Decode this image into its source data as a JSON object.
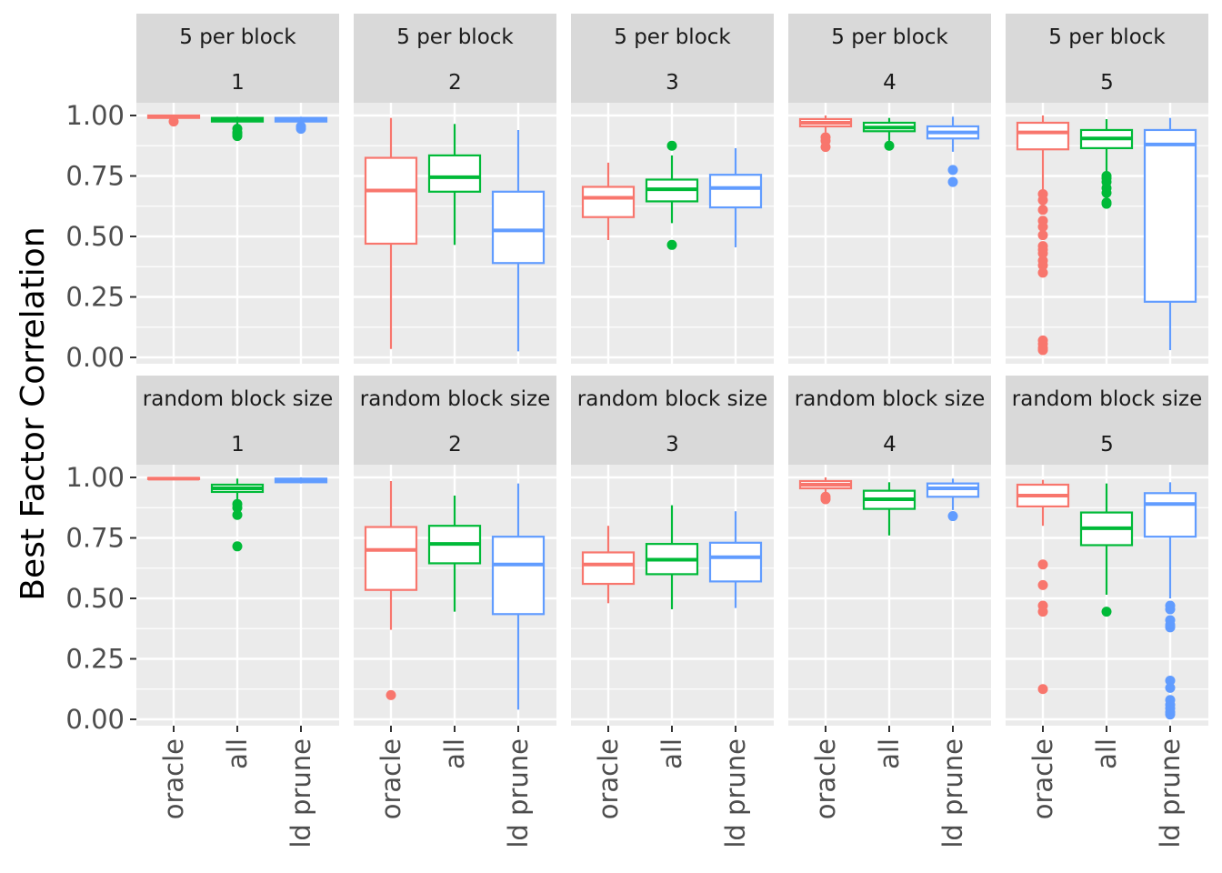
{
  "chart_data": {
    "type": "boxplot",
    "ylabel": "Best Factor Correlation",
    "xlabel": "",
    "ylim": [
      0,
      1
    ],
    "y_ticks": [
      "0.00",
      "0.25",
      "0.50",
      "0.75",
      "1.00"
    ],
    "y_tick_values": [
      0,
      0.25,
      0.5,
      0.75,
      1.0
    ],
    "categories": [
      "oracle",
      "all",
      "ld prune"
    ],
    "colors": {
      "oracle": "#F8766D",
      "all": "#00BA38",
      "ld prune": "#619CFF"
    },
    "grid": true,
    "legend": "none",
    "row_labels": [
      "5 per block",
      "random block size"
    ],
    "col_labels": [
      "1",
      "2",
      "3",
      "4",
      "5"
    ],
    "panels": [
      {
        "row": "5 per block",
        "col": "1",
        "boxes": [
          {
            "category": "oracle",
            "lower": 0.985,
            "q1": 0.99,
            "median": 0.995,
            "q3": 1.0,
            "upper": 1.0,
            "outliers": [
              0.975
            ]
          },
          {
            "category": "all",
            "lower": 0.955,
            "q1": 0.975,
            "median": 0.98,
            "q3": 0.99,
            "upper": 0.995,
            "outliers": [
              0.93,
              0.925,
              0.915,
              0.945
            ]
          },
          {
            "category": "ld prune",
            "lower": 0.965,
            "q1": 0.975,
            "median": 0.985,
            "q3": 0.99,
            "upper": 0.995,
            "outliers": [
              0.955,
              0.945
            ]
          }
        ]
      },
      {
        "row": "5 per block",
        "col": "2",
        "boxes": [
          {
            "category": "oracle",
            "lower": 0.035,
            "q1": 0.47,
            "median": 0.69,
            "q3": 0.825,
            "upper": 0.99,
            "outliers": []
          },
          {
            "category": "all",
            "lower": 0.465,
            "q1": 0.685,
            "median": 0.745,
            "q3": 0.835,
            "upper": 0.965,
            "outliers": []
          },
          {
            "category": "ld prune",
            "lower": 0.025,
            "q1": 0.39,
            "median": 0.525,
            "q3": 0.685,
            "upper": 0.94,
            "outliers": []
          }
        ]
      },
      {
        "row": "5 per block",
        "col": "3",
        "boxes": [
          {
            "category": "oracle",
            "lower": 0.485,
            "q1": 0.58,
            "median": 0.66,
            "q3": 0.705,
            "upper": 0.805,
            "outliers": []
          },
          {
            "category": "all",
            "lower": 0.555,
            "q1": 0.645,
            "median": 0.695,
            "q3": 0.735,
            "upper": 0.835,
            "outliers": [
              0.875,
              0.465
            ]
          },
          {
            "category": "ld prune",
            "lower": 0.455,
            "q1": 0.62,
            "median": 0.7,
            "q3": 0.755,
            "upper": 0.865,
            "outliers": []
          }
        ]
      },
      {
        "row": "5 per block",
        "col": "4",
        "boxes": [
          {
            "category": "oracle",
            "lower": 0.93,
            "q1": 0.955,
            "median": 0.97,
            "q3": 0.985,
            "upper": 1.0,
            "outliers": [
              0.91,
              0.895,
              0.87
            ]
          },
          {
            "category": "all",
            "lower": 0.895,
            "q1": 0.935,
            "median": 0.95,
            "q3": 0.97,
            "upper": 0.99,
            "outliers": [
              0.875
            ]
          },
          {
            "category": "ld prune",
            "lower": 0.85,
            "q1": 0.905,
            "median": 0.93,
            "q3": 0.955,
            "upper": 0.995,
            "outliers": [
              0.775,
              0.725
            ]
          }
        ]
      },
      {
        "row": "5 per block",
        "col": "5",
        "boxes": [
          {
            "category": "oracle",
            "lower": 0.69,
            "q1": 0.86,
            "median": 0.93,
            "q3": 0.97,
            "upper": 1.0,
            "outliers": [
              0.675,
              0.65,
              0.61,
              0.565,
              0.54,
              0.505,
              0.46,
              0.445,
              0.43,
              0.4,
              0.38,
              0.35,
              0.07,
              0.055,
              0.04,
              0.03
            ]
          },
          {
            "category": "all",
            "lower": 0.76,
            "q1": 0.865,
            "median": 0.905,
            "q3": 0.94,
            "upper": 0.985,
            "outliers": [
              0.75,
              0.74,
              0.725,
              0.7,
              0.68,
              0.64,
              0.635
            ]
          },
          {
            "category": "ld prune",
            "lower": 0.03,
            "q1": 0.23,
            "median": 0.88,
            "q3": 0.94,
            "upper": 0.99,
            "outliers": []
          }
        ]
      },
      {
        "row": "random block size",
        "col": "1",
        "boxes": [
          {
            "category": "oracle",
            "lower": 0.99,
            "q1": 0.993,
            "median": 0.995,
            "q3": 0.998,
            "upper": 1.0,
            "outliers": []
          },
          {
            "category": "all",
            "lower": 0.905,
            "q1": 0.94,
            "median": 0.955,
            "q3": 0.97,
            "upper": 0.995,
            "outliers": [
              0.89,
              0.875,
              0.845,
              0.715
            ]
          },
          {
            "category": "ld prune",
            "lower": 0.975,
            "q1": 0.98,
            "median": 0.99,
            "q3": 0.995,
            "upper": 1.0,
            "outliers": []
          }
        ]
      },
      {
        "row": "random block size",
        "col": "2",
        "boxes": [
          {
            "category": "oracle",
            "lower": 0.37,
            "q1": 0.535,
            "median": 0.7,
            "q3": 0.795,
            "upper": 0.985,
            "outliers": [
              0.1
            ]
          },
          {
            "category": "all",
            "lower": 0.445,
            "q1": 0.645,
            "median": 0.725,
            "q3": 0.8,
            "upper": 0.925,
            "outliers": []
          },
          {
            "category": "ld prune",
            "lower": 0.04,
            "q1": 0.435,
            "median": 0.64,
            "q3": 0.755,
            "upper": 0.975,
            "outliers": []
          }
        ]
      },
      {
        "row": "random block size",
        "col": "3",
        "boxes": [
          {
            "category": "oracle",
            "lower": 0.48,
            "q1": 0.56,
            "median": 0.64,
            "q3": 0.69,
            "upper": 0.8,
            "outliers": []
          },
          {
            "category": "all",
            "lower": 0.455,
            "q1": 0.6,
            "median": 0.66,
            "q3": 0.725,
            "upper": 0.885,
            "outliers": []
          },
          {
            "category": "ld prune",
            "lower": 0.46,
            "q1": 0.57,
            "median": 0.67,
            "q3": 0.73,
            "upper": 0.86,
            "outliers": []
          }
        ]
      },
      {
        "row": "random block size",
        "col": "4",
        "boxes": [
          {
            "category": "oracle",
            "lower": 0.935,
            "q1": 0.955,
            "median": 0.97,
            "q3": 0.985,
            "upper": 1.0,
            "outliers": [
              0.92,
              0.91
            ]
          },
          {
            "category": "all",
            "lower": 0.76,
            "q1": 0.87,
            "median": 0.91,
            "q3": 0.945,
            "upper": 0.98,
            "outliers": []
          },
          {
            "category": "ld prune",
            "lower": 0.865,
            "q1": 0.92,
            "median": 0.955,
            "q3": 0.975,
            "upper": 0.995,
            "outliers": [
              0.84
            ]
          }
        ]
      },
      {
        "row": "random block size",
        "col": "5",
        "boxes": [
          {
            "category": "oracle",
            "lower": 0.8,
            "q1": 0.88,
            "median": 0.925,
            "q3": 0.97,
            "upper": 0.99,
            "outliers": [
              0.64,
              0.555,
              0.47,
              0.445,
              0.125
            ]
          },
          {
            "category": "all",
            "lower": 0.515,
            "q1": 0.72,
            "median": 0.79,
            "q3": 0.855,
            "upper": 0.975,
            "outliers": [
              0.445
            ]
          },
          {
            "category": "ld prune",
            "lower": 0.5,
            "q1": 0.755,
            "median": 0.89,
            "q3": 0.935,
            "upper": 0.98,
            "outliers": [
              0.47,
              0.455,
              0.41,
              0.39,
              0.38,
              0.16,
              0.13,
              0.08,
              0.06,
              0.045,
              0.03,
              0.02
            ]
          }
        ]
      }
    ]
  }
}
